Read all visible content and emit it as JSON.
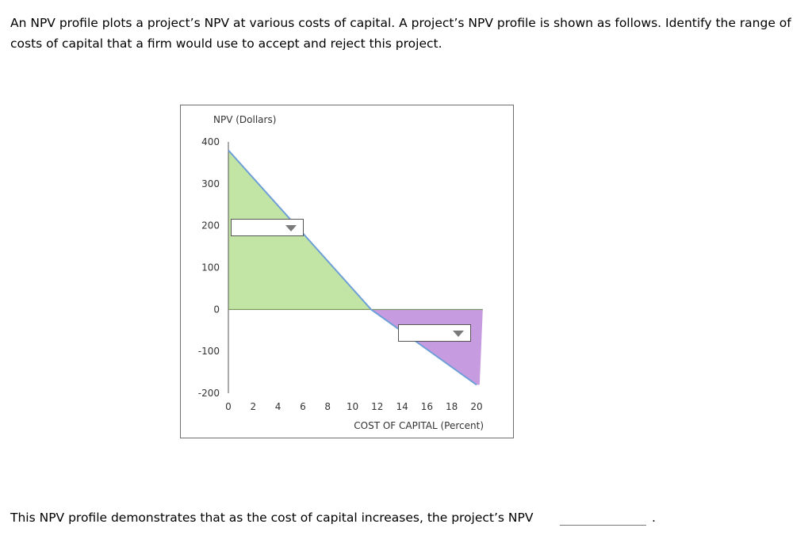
{
  "question": {
    "text": "An NPV profile plots a project’s NPV at various costs of capital. A project’s NPV profile is shown as follows. Identify the range of costs of capital that a firm would use to accept and reject this project."
  },
  "chart_data": {
    "type": "area",
    "title": "",
    "ylabel": "NPV (Dollars)",
    "xlabel": "COST OF CAPITAL (Percent)",
    "xlim": [
      0,
      20
    ],
    "ylim": [
      -200,
      400
    ],
    "x_ticks": [
      "0",
      "2",
      "4",
      "6",
      "8",
      "10",
      "12",
      "14",
      "16",
      "18",
      "20"
    ],
    "y_ticks": [
      "400",
      "300",
      "200",
      "100",
      "0",
      "-100",
      "-200"
    ],
    "grid": false,
    "series": [
      {
        "x": [
          0,
          11.5,
          20
        ],
        "y": [
          380,
          0,
          -180
        ]
      }
    ],
    "shaded_regions": [
      {
        "x_range": [
          0,
          11.5
        ],
        "color": "#c2e4a4"
      },
      {
        "x_range": [
          11.5,
          20.5
        ],
        "color": "#c79be0"
      }
    ],
    "line_color": "#6e9fd6"
  },
  "dropdowns": {
    "accept_region": {
      "selected": ""
    },
    "reject_region": {
      "selected": ""
    }
  },
  "bottom": {
    "sentence": "This NPV profile demonstrates that as the cost of capital increases, the project’s NPV",
    "blank_value": "",
    "end": "."
  }
}
